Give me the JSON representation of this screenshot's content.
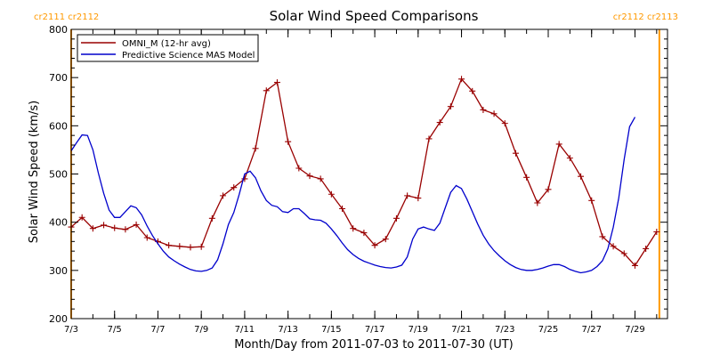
{
  "colors": {
    "axis": "#000000",
    "rotation": "#ff9900",
    "omni": "#990000",
    "mas": "#0000cc"
  },
  "rotation_labels": {
    "left": "cr2111 cr2112",
    "right": "cr2112 cr2113"
  },
  "chart_data": {
    "type": "line",
    "title": "Solar Wind Speed Comparisons",
    "xlabel": "Month/Day from 2011-07-03 to 2011-07-30 (UT)",
    "ylabel": "Solar Wind Speed (km/s)",
    "xlim": [
      "2011-07-03",
      "2011-07-30"
    ],
    "ylim": [
      200,
      800
    ],
    "x_ticks": [
      "7/3",
      "7/5",
      "7/7",
      "7/9",
      "7/11",
      "7/13",
      "7/15",
      "7/17",
      "7/19",
      "7/21",
      "7/23",
      "7/25",
      "7/27",
      "7/29"
    ],
    "y_ticks": [
      200,
      300,
      400,
      500,
      600,
      700,
      800
    ],
    "legend_position": "top-left",
    "rotation_boundaries": [
      {
        "date": "2011-07-03 00:00",
        "labels": "cr2111 cr2112"
      },
      {
        "date": "2011-07-30 03:00",
        "labels": "cr2112 cr2113"
      }
    ],
    "series": [
      {
        "name": "OMNI_M (12-hr avg)",
        "color": "#990000",
        "marker": "+",
        "points": [
          [
            "2011-07-03 00:00",
            390
          ],
          [
            "2011-07-03 12:00",
            410
          ],
          [
            "2011-07-04 00:00",
            387
          ],
          [
            "2011-07-04 12:00",
            394
          ],
          [
            "2011-07-05 00:00",
            388
          ],
          [
            "2011-07-05 12:00",
            385
          ],
          [
            "2011-07-06 00:00",
            395
          ],
          [
            "2011-07-06 12:00",
            368
          ],
          [
            "2011-07-07 00:00",
            360
          ],
          [
            "2011-07-07 12:00",
            352
          ],
          [
            "2011-07-08 00:00",
            350
          ],
          [
            "2011-07-08 12:00",
            348
          ],
          [
            "2011-07-09 00:00",
            349
          ],
          [
            "2011-07-09 12:00",
            408
          ],
          [
            "2011-07-10 00:00",
            455
          ],
          [
            "2011-07-10 12:00",
            472
          ],
          [
            "2011-07-11 00:00",
            490
          ],
          [
            "2011-07-11 12:00",
            553
          ],
          [
            "2011-07-12 00:00",
            673
          ],
          [
            "2011-07-12 12:00",
            690
          ],
          [
            "2011-07-13 00:00",
            567
          ],
          [
            "2011-07-13 12:00",
            512
          ],
          [
            "2011-07-14 00:00",
            496
          ],
          [
            "2011-07-14 12:00",
            490
          ],
          [
            "2011-07-15 00:00",
            458
          ],
          [
            "2011-07-15 12:00",
            428
          ],
          [
            "2011-07-16 00:00",
            387
          ],
          [
            "2011-07-16 12:00",
            378
          ],
          [
            "2011-07-17 00:00",
            352
          ],
          [
            "2011-07-17 12:00",
            365
          ],
          [
            "2011-07-18 00:00",
            408
          ],
          [
            "2011-07-18 12:00",
            455
          ],
          [
            "2011-07-19 00:00",
            450
          ],
          [
            "2011-07-19 12:00",
            573
          ],
          [
            "2011-07-20 00:00",
            607
          ],
          [
            "2011-07-20 12:00",
            640
          ],
          [
            "2011-07-21 00:00",
            697
          ],
          [
            "2011-07-21 12:00",
            672
          ],
          [
            "2011-07-22 00:00",
            633
          ],
          [
            "2011-07-22 12:00",
            625
          ],
          [
            "2011-07-23 00:00",
            605
          ],
          [
            "2011-07-23 12:00",
            543
          ],
          [
            "2011-07-24 00:00",
            493
          ],
          [
            "2011-07-24 12:00",
            440
          ],
          [
            "2011-07-25 00:00",
            468
          ],
          [
            "2011-07-25 12:00",
            562
          ],
          [
            "2011-07-26 00:00",
            533
          ],
          [
            "2011-07-26 12:00",
            495
          ],
          [
            "2011-07-27 00:00",
            445
          ],
          [
            "2011-07-27 12:00",
            370
          ],
          [
            "2011-07-28 00:00",
            350
          ],
          [
            "2011-07-28 12:00",
            335
          ],
          [
            "2011-07-29 00:00",
            310
          ],
          [
            "2011-07-29 12:00",
            345
          ],
          [
            "2011-07-30 00:00",
            380
          ]
        ]
      },
      {
        "name": "Predictive Science MAS Model",
        "color": "#0000cc",
        "marker": "none",
        "points": [
          [
            "2011-07-03 00:00",
            548
          ],
          [
            "2011-07-03 06:00",
            565
          ],
          [
            "2011-07-03 12:00",
            581
          ],
          [
            "2011-07-03 18:00",
            580
          ],
          [
            "2011-07-04 00:00",
            550
          ],
          [
            "2011-07-04 06:00",
            502
          ],
          [
            "2011-07-04 12:00",
            460
          ],
          [
            "2011-07-04 18:00",
            425
          ],
          [
            "2011-07-05 00:00",
            410
          ],
          [
            "2011-07-05 06:00",
            410
          ],
          [
            "2011-07-05 12:00",
            422
          ],
          [
            "2011-07-05 18:00",
            434
          ],
          [
            "2011-07-06 00:00",
            430
          ],
          [
            "2011-07-06 06:00",
            415
          ],
          [
            "2011-07-06 12:00",
            392
          ],
          [
            "2011-07-06 18:00",
            372
          ],
          [
            "2011-07-07 00:00",
            355
          ],
          [
            "2011-07-07 06:00",
            340
          ],
          [
            "2011-07-07 12:00",
            328
          ],
          [
            "2011-07-07 18:00",
            320
          ],
          [
            "2011-07-08 00:00",
            313
          ],
          [
            "2011-07-08 06:00",
            307
          ],
          [
            "2011-07-08 12:00",
            302
          ],
          [
            "2011-07-08 18:00",
            299
          ],
          [
            "2011-07-09 00:00",
            298
          ],
          [
            "2011-07-09 06:00",
            300
          ],
          [
            "2011-07-09 12:00",
            305
          ],
          [
            "2011-07-09 18:00",
            322
          ],
          [
            "2011-07-10 00:00",
            355
          ],
          [
            "2011-07-10 06:00",
            395
          ],
          [
            "2011-07-10 12:00",
            420
          ],
          [
            "2011-07-10 18:00",
            458
          ],
          [
            "2011-07-11 00:00",
            500
          ],
          [
            "2011-07-11 06:00",
            506
          ],
          [
            "2011-07-11 12:00",
            492
          ],
          [
            "2011-07-11 18:00",
            465
          ],
          [
            "2011-07-12 00:00",
            445
          ],
          [
            "2011-07-12 06:00",
            435
          ],
          [
            "2011-07-12 12:00",
            432
          ],
          [
            "2011-07-12 18:00",
            422
          ],
          [
            "2011-07-13 00:00",
            420
          ],
          [
            "2011-07-13 06:00",
            428
          ],
          [
            "2011-07-13 12:00",
            428
          ],
          [
            "2011-07-13 18:00",
            418
          ],
          [
            "2011-07-14 00:00",
            407
          ],
          [
            "2011-07-14 06:00",
            405
          ],
          [
            "2011-07-14 12:00",
            404
          ],
          [
            "2011-07-14 18:00",
            398
          ],
          [
            "2011-07-15 00:00",
            386
          ],
          [
            "2011-07-15 06:00",
            372
          ],
          [
            "2011-07-15 12:00",
            357
          ],
          [
            "2011-07-15 18:00",
            343
          ],
          [
            "2011-07-16 00:00",
            333
          ],
          [
            "2011-07-16 06:00",
            325
          ],
          [
            "2011-07-16 12:00",
            319
          ],
          [
            "2011-07-16 18:00",
            315
          ],
          [
            "2011-07-17 00:00",
            311
          ],
          [
            "2011-07-17 06:00",
            308
          ],
          [
            "2011-07-17 12:00",
            306
          ],
          [
            "2011-07-17 18:00",
            305
          ],
          [
            "2011-07-18 00:00",
            307
          ],
          [
            "2011-07-18 06:00",
            311
          ],
          [
            "2011-07-18 12:00",
            328
          ],
          [
            "2011-07-18 18:00",
            365
          ],
          [
            "2011-07-19 00:00",
            386
          ],
          [
            "2011-07-19 06:00",
            390
          ],
          [
            "2011-07-19 12:00",
            386
          ],
          [
            "2011-07-19 18:00",
            383
          ],
          [
            "2011-07-20 00:00",
            398
          ],
          [
            "2011-07-20 06:00",
            430
          ],
          [
            "2011-07-20 12:00",
            462
          ],
          [
            "2011-07-20 18:00",
            476
          ],
          [
            "2011-07-21 00:00",
            470
          ],
          [
            "2011-07-21 06:00",
            448
          ],
          [
            "2011-07-21 12:00",
            422
          ],
          [
            "2011-07-21 18:00",
            396
          ],
          [
            "2011-07-22 00:00",
            373
          ],
          [
            "2011-07-22 06:00",
            355
          ],
          [
            "2011-07-22 12:00",
            341
          ],
          [
            "2011-07-22 18:00",
            330
          ],
          [
            "2011-07-23 00:00",
            320
          ],
          [
            "2011-07-23 06:00",
            312
          ],
          [
            "2011-07-23 12:00",
            306
          ],
          [
            "2011-07-23 18:00",
            302
          ],
          [
            "2011-07-24 00:00",
            300
          ],
          [
            "2011-07-24 06:00",
            300
          ],
          [
            "2011-07-24 12:00",
            302
          ],
          [
            "2011-07-24 18:00",
            305
          ],
          [
            "2011-07-25 00:00",
            309
          ],
          [
            "2011-07-25 06:00",
            312
          ],
          [
            "2011-07-25 12:00",
            312
          ],
          [
            "2011-07-25 18:00",
            308
          ],
          [
            "2011-07-26 00:00",
            302
          ],
          [
            "2011-07-26 06:00",
            298
          ],
          [
            "2011-07-26 12:00",
            295
          ],
          [
            "2011-07-26 18:00",
            297
          ],
          [
            "2011-07-27 00:00",
            300
          ],
          [
            "2011-07-27 06:00",
            308
          ],
          [
            "2011-07-27 12:00",
            320
          ],
          [
            "2011-07-27 18:00",
            345
          ],
          [
            "2011-07-28 00:00",
            390
          ],
          [
            "2011-07-28 06:00",
            450
          ],
          [
            "2011-07-28 12:00",
            530
          ],
          [
            "2011-07-28 18:00",
            598
          ],
          [
            "2011-07-29 00:00",
            618
          ]
        ]
      }
    ]
  }
}
